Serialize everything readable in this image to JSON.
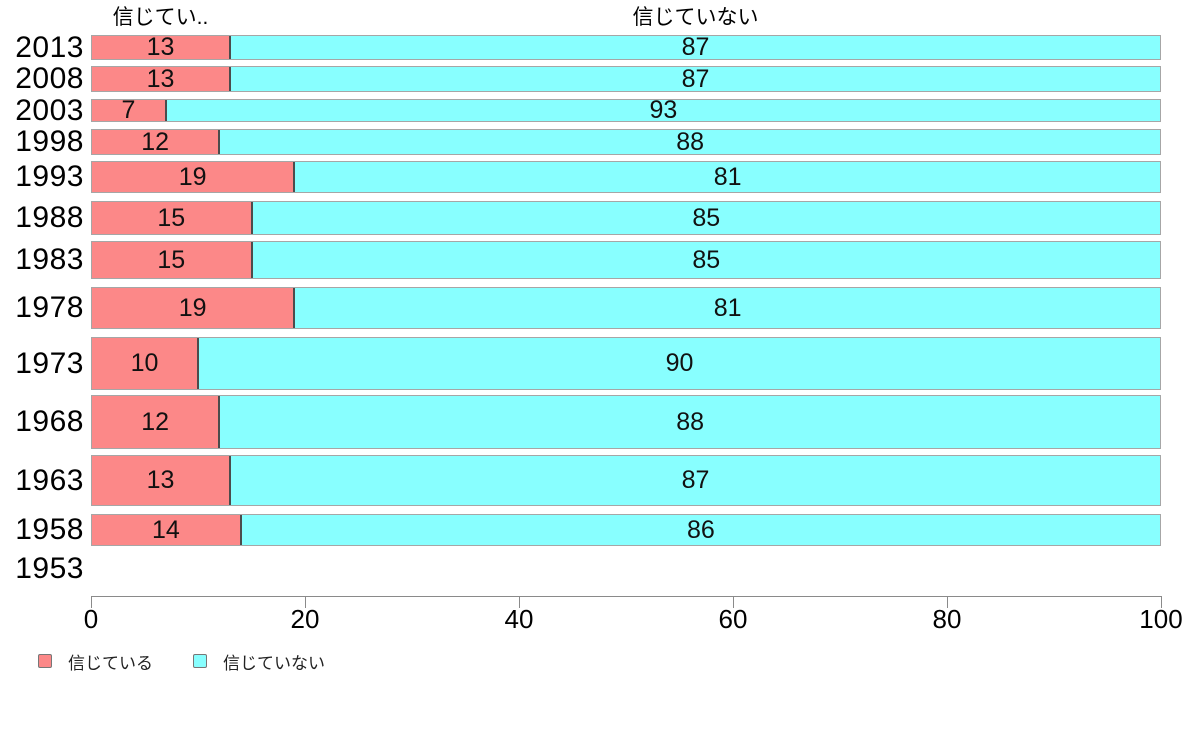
{
  "chart_data": {
    "type": "bar",
    "orientation": "horizontal",
    "stacked": true,
    "title": "",
    "column_headers": [
      "信じてい..",
      "信じていない"
    ],
    "categories": [
      "2013",
      "2008",
      "2003",
      "1998",
      "1993",
      "1988",
      "1983",
      "1978",
      "1973",
      "1968",
      "1963",
      "1958",
      "1953"
    ],
    "series": [
      {
        "name": "信じている",
        "color": "#fc8888",
        "values": [
          13,
          13,
          7,
          12,
          19,
          15,
          15,
          19,
          10,
          12,
          13,
          14,
          null
        ]
      },
      {
        "name": "信じていない",
        "color": "#88ffff",
        "values": [
          87,
          87,
          93,
          88,
          81,
          85,
          85,
          81,
          90,
          88,
          87,
          86,
          null
        ]
      }
    ],
    "xlim": [
      0,
      100
    ],
    "x_ticks": [
      0,
      20,
      40,
      60,
      80,
      100
    ],
    "grid": false,
    "legend_position": "bottom-left"
  }
}
